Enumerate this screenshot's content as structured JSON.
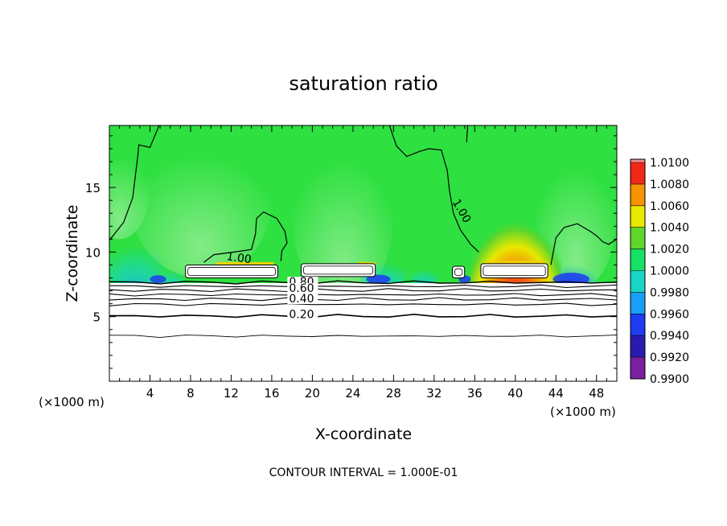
{
  "chart_data": {
    "type": "heatmap",
    "title": "saturation ratio",
    "xlabel": "X-coordinate",
    "ylabel": "Z-coordinate",
    "x_unit_left": "(×1000 m)",
    "x_unit_right": "(×1000 m)",
    "xlim": [
      0,
      50
    ],
    "ylim": [
      0,
      19.8
    ],
    "x_ticks": [
      4,
      8,
      12,
      16,
      20,
      24,
      28,
      32,
      36,
      40,
      44,
      48
    ],
    "x_tick_labels": [
      "4",
      "8",
      "12",
      "16",
      "20",
      "24",
      "28",
      "32",
      "36",
      "40",
      "44",
      "48"
    ],
    "y_ticks": [
      5,
      10,
      15
    ],
    "y_tick_labels": [
      "5",
      "10",
      "15"
    ],
    "colorbar": {
      "values": [
        0.99,
        0.992,
        0.994,
        0.996,
        0.998,
        1.0,
        1.002,
        1.004,
        1.006,
        1.008,
        1.01
      ],
      "labels": [
        "0.9900",
        "0.9920",
        "0.9940",
        "0.9960",
        "0.9980",
        "1.0000",
        "1.0020",
        "1.0040",
        "1.0060",
        "1.0080",
        "1.0100"
      ],
      "colors": [
        "#7a1fa2",
        "#2a1bb0",
        "#1f3cf0",
        "#17a0f5",
        "#18d6c3",
        "#16e065",
        "#5ed62b",
        "#e8e800",
        "#f59300",
        "#f02818",
        "#f48a8a"
      ]
    },
    "contour_labels": [
      {
        "text": "1.00",
        "x": 11.5,
        "y": 9.4,
        "level": 1.0
      },
      {
        "text": "1.00",
        "x": 33.5,
        "y": 13.0,
        "level": 1.0
      },
      {
        "text": "0.80",
        "x": 17.7,
        "y": 7.4,
        "level": 0.8
      },
      {
        "text": "0.60",
        "x": 17.7,
        "y": 6.9,
        "level": 0.6
      },
      {
        "text": "0.40",
        "x": 17.7,
        "y": 6.1,
        "level": 0.4
      },
      {
        "text": "0.20",
        "x": 17.7,
        "y": 4.9,
        "level": 0.2
      }
    ],
    "cloud_regions": [
      {
        "x0": 7.5,
        "x1": 16.6,
        "z0": 8.0,
        "z1": 9.0
      },
      {
        "x0": 18.9,
        "x1": 26.2,
        "z0": 8.1,
        "z1": 9.1
      },
      {
        "x0": 33.8,
        "x1": 35.0,
        "z0": 8.0,
        "z1": 8.9
      },
      {
        "x0": 36.6,
        "x1": 43.2,
        "z0": 8.0,
        "z1": 9.1
      }
    ],
    "footer": "CONTOUR INTERVAL = 1.000E-01"
  }
}
